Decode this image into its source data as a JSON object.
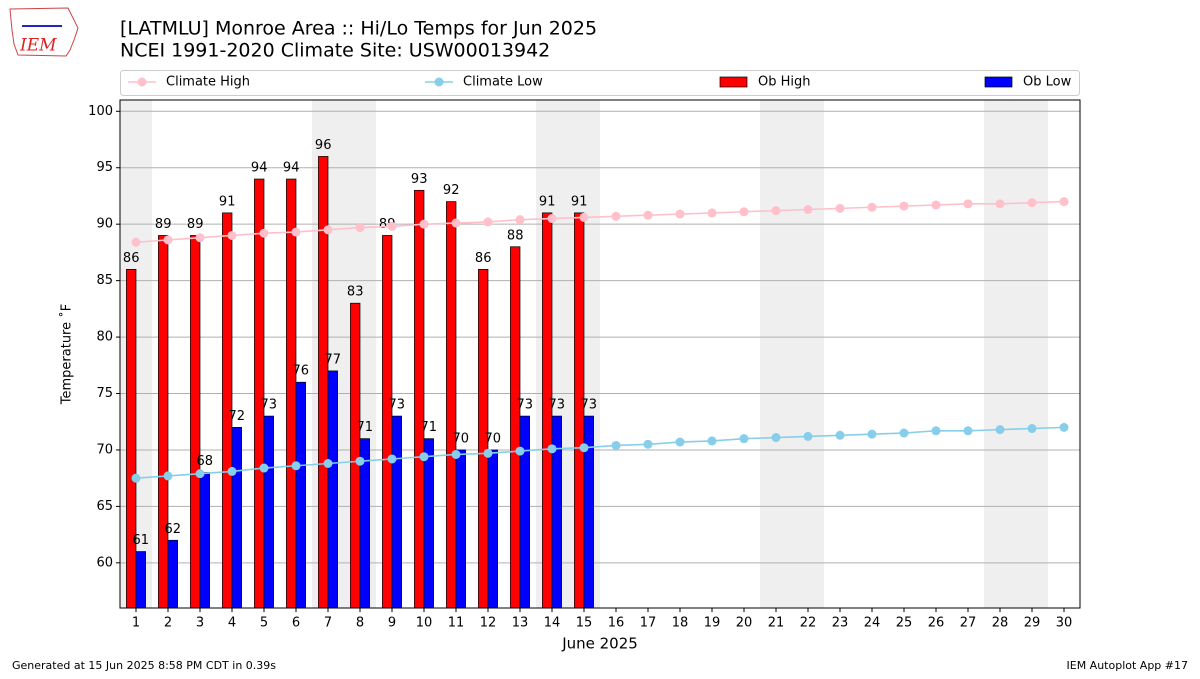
{
  "logo_text": "IEM",
  "chart_data": {
    "type": "bar",
    "title": "[LATMLU] Monroe Area :: Hi/Lo Temps for Jun 2025",
    "subtitle": "NCEI 1991-2020 Climate Site: USW00013942",
    "y_label": "Temperature ˚F",
    "x_label": "June 2025",
    "footer_left": "Generated at 15 Jun 2025 8:58 PM CDT in 0.39s",
    "footer_right": "IEM Autoplot App #17",
    "categories": [
      "1",
      "2",
      "3",
      "4",
      "5",
      "6",
      "7",
      "8",
      "9",
      "10",
      "11",
      "12",
      "13",
      "14",
      "15",
      "16",
      "17",
      "18",
      "19",
      "20",
      "21",
      "22",
      "23",
      "24",
      "25",
      "26",
      "27",
      "28",
      "29",
      "30"
    ],
    "shaded_days": [
      "1",
      "7",
      "8",
      "14",
      "15",
      "21",
      "22",
      "28",
      "29"
    ],
    "series": [
      {
        "name": "Climate High",
        "type": "line",
        "color": "#ffc0cb",
        "values": [
          88.4,
          88.6,
          88.8,
          89.0,
          89.2,
          89.3,
          89.5,
          89.7,
          89.8,
          90.0,
          90.1,
          90.2,
          90.4,
          90.5,
          90.6,
          90.7,
          90.8,
          90.9,
          91.0,
          91.1,
          91.2,
          91.3,
          91.4,
          91.5,
          91.6,
          91.7,
          91.8,
          91.8,
          91.9,
          92.0
        ]
      },
      {
        "name": "Climate Low",
        "type": "line",
        "color": "#87ceeb",
        "values": [
          67.5,
          67.7,
          67.9,
          68.1,
          68.4,
          68.6,
          68.8,
          69.0,
          69.2,
          69.4,
          69.6,
          69.7,
          69.9,
          70.1,
          70.2,
          70.4,
          70.5,
          70.7,
          70.8,
          71.0,
          71.1,
          71.2,
          71.3,
          71.4,
          71.5,
          71.7,
          71.7,
          71.8,
          71.9,
          72.0
        ]
      },
      {
        "name": "Ob High",
        "type": "bar",
        "color": "#ff0000",
        "values": [
          86,
          89,
          89,
          91,
          94,
          94,
          96,
          83,
          89,
          93,
          92,
          86,
          88,
          91,
          91,
          null,
          null,
          null,
          null,
          null,
          null,
          null,
          null,
          null,
          null,
          null,
          null,
          null,
          null,
          null
        ]
      },
      {
        "name": "Ob Low",
        "type": "bar",
        "color": "#0000ff",
        "values": [
          61,
          62,
          68,
          72,
          73,
          76,
          77,
          71,
          73,
          71,
          70,
          70,
          73,
          73,
          73,
          null,
          null,
          null,
          null,
          null,
          null,
          null,
          null,
          null,
          null,
          null,
          null,
          null,
          null,
          null
        ]
      }
    ],
    "ylim": [
      56,
      101
    ],
    "yticks": [
      60,
      65,
      70,
      75,
      80,
      85,
      90,
      95,
      100
    ],
    "grid": true
  }
}
